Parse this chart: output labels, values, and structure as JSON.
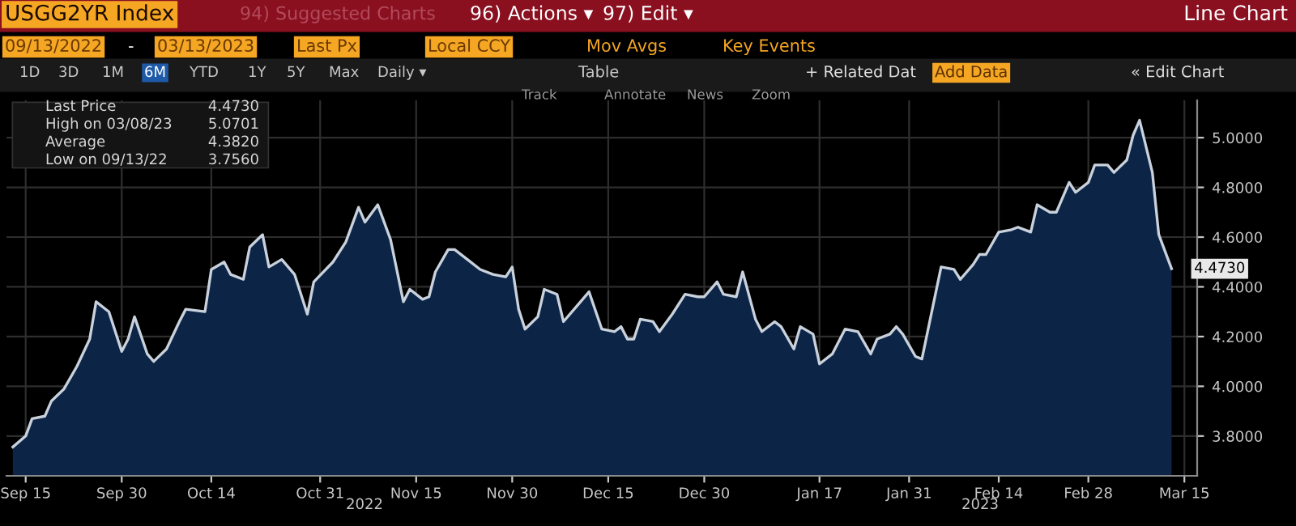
{
  "chart_data": {
    "type": "area",
    "title": "USGG2YR Index",
    "subtitle": "Line Chart",
    "x": [
      "2022-09-13",
      "2022-09-15",
      "2022-09-16",
      "2022-09-18",
      "2022-09-19",
      "2022-09-21",
      "2022-09-23",
      "2022-09-25",
      "2022-09-26",
      "2022-09-28",
      "2022-09-30",
      "2022-10-01",
      "2022-10-02",
      "2022-10-04",
      "2022-10-05",
      "2022-10-07",
      "2022-10-09",
      "2022-10-10",
      "2022-10-13",
      "2022-10-14",
      "2022-10-16",
      "2022-10-17",
      "2022-10-19",
      "2022-10-20",
      "2022-10-22",
      "2022-10-23",
      "2022-10-25",
      "2022-10-27",
      "2022-10-29",
      "2022-10-30",
      "2022-11-02",
      "2022-11-04",
      "2022-11-06",
      "2022-11-07",
      "2022-11-09",
      "2022-11-11",
      "2022-11-13",
      "2022-11-14",
      "2022-11-16",
      "2022-11-17",
      "2022-11-18",
      "2022-11-20",
      "2022-11-21",
      "2022-11-23",
      "2022-11-25",
      "2022-11-27",
      "2022-11-29",
      "2022-11-30",
      "2022-12-01",
      "2022-12-02",
      "2022-12-04",
      "2022-12-05",
      "2022-12-07",
      "2022-12-08",
      "2022-12-10",
      "2022-12-12",
      "2022-12-14",
      "2022-12-16",
      "2022-12-17",
      "2022-12-18",
      "2022-12-19",
      "2022-12-20",
      "2022-12-22",
      "2022-12-23",
      "2022-12-25",
      "2022-12-27",
      "2022-12-29",
      "2022-12-30",
      "2023-01-01",
      "2023-01-02",
      "2023-01-04",
      "2023-01-05",
      "2023-01-07",
      "2023-01-08",
      "2023-01-10",
      "2023-01-11",
      "2023-01-13",
      "2023-01-14",
      "2023-01-16",
      "2023-01-17",
      "2023-01-19",
      "2023-01-21",
      "2023-01-23",
      "2023-01-25",
      "2023-01-26",
      "2023-01-28",
      "2023-01-29",
      "2023-01-30",
      "2023-02-01",
      "2023-02-02",
      "2023-02-05",
      "2023-02-07",
      "2023-02-08",
      "2023-02-10",
      "2023-02-11",
      "2023-02-12",
      "2023-02-14",
      "2023-02-16",
      "2023-02-17",
      "2023-02-19",
      "2023-02-20",
      "2023-02-22",
      "2023-02-23",
      "2023-02-25",
      "2023-02-26",
      "2023-02-28",
      "2023-03-01",
      "2023-03-03",
      "2023-03-04",
      "2023-03-06",
      "2023-03-07",
      "2023-03-08",
      "2023-03-10",
      "2023-03-11",
      "2023-03-13"
    ],
    "series": [
      {
        "color": "#c9d1dc",
        "values": [
          3.756,
          3.8,
          3.87,
          3.88,
          3.94,
          3.99,
          4.08,
          4.19,
          4.34,
          4.3,
          4.14,
          4.19,
          4.28,
          4.13,
          4.1,
          4.15,
          4.26,
          4.31,
          4.3,
          4.47,
          4.5,
          4.45,
          4.43,
          4.56,
          4.61,
          4.48,
          4.51,
          4.45,
          4.29,
          4.42,
          4.5,
          4.58,
          4.72,
          4.66,
          4.73,
          4.59,
          4.34,
          4.39,
          4.35,
          4.36,
          4.46,
          4.55,
          4.55,
          4.51,
          4.47,
          4.45,
          4.44,
          4.48,
          4.31,
          4.23,
          4.28,
          4.39,
          4.37,
          4.26,
          4.32,
          4.38,
          4.23,
          4.22,
          4.24,
          4.19,
          4.19,
          4.27,
          4.26,
          4.22,
          4.29,
          4.37,
          4.36,
          4.36,
          4.42,
          4.37,
          4.36,
          4.46,
          4.27,
          4.22,
          4.26,
          4.24,
          4.15,
          4.24,
          4.21,
          4.09,
          4.13,
          4.23,
          4.22,
          4.13,
          4.19,
          4.21,
          4.24,
          4.21,
          4.12,
          4.11,
          4.48,
          4.47,
          4.43,
          4.49,
          4.53,
          4.53,
          4.62,
          4.63,
          4.64,
          4.62,
          4.73,
          4.7,
          4.7,
          4.82,
          4.78,
          4.82,
          4.89,
          4.89,
          4.86,
          4.91,
          5.01,
          5.07,
          4.86,
          4.61,
          4.473
        ]
      }
    ],
    "xlim": [
      "2022-09-12",
      "2023-03-17"
    ],
    "xticks": [
      {
        "value": "2022-09-15",
        "label": "Sep 15"
      },
      {
        "value": "2022-09-30",
        "label": "Sep 30"
      },
      {
        "value": "2022-10-14",
        "label": "Oct 14"
      },
      {
        "value": "2022-10-31",
        "label": "Oct 31"
      },
      {
        "value": "2022-11-15",
        "label": "Nov 15"
      },
      {
        "value": "2022-11-30",
        "label": "Nov 30"
      },
      {
        "value": "2022-12-15",
        "label": "Dec 15"
      },
      {
        "value": "2022-12-30",
        "label": "Dec 30"
      },
      {
        "value": "2023-01-17",
        "label": "Jan 17"
      },
      {
        "value": "2023-01-31",
        "label": "Jan 31"
      },
      {
        "value": "2023-02-14",
        "label": "Feb 14"
      },
      {
        "value": "2023-02-28",
        "label": "Feb 28"
      },
      {
        "value": "2023-03-15",
        "label": "Mar 15"
      }
    ],
    "ylim": [
      3.64,
      5.15
    ],
    "yticks": [
      {
        "value": 3.8,
        "label": "3.8000"
      },
      {
        "value": 4.0,
        "label": "4.0000"
      },
      {
        "value": 4.2,
        "label": "4.2000"
      },
      {
        "value": 4.4,
        "label": "4.4000"
      },
      {
        "value": 4.6,
        "label": "4.6000"
      },
      {
        "value": 4.8,
        "label": "4.8000"
      },
      {
        "value": 5.0,
        "label": "5.0000"
      }
    ],
    "grid": true,
    "annotations": [
      "94) Suggested Charts",
      "96) Actions ▾",
      "97) Edit ▾",
      "09/13/2022",
      "-",
      "03/13/2023",
      "Last Px",
      "Local CCY",
      "Mov Avgs",
      "Key Events",
      "1D",
      "3D",
      "1M",
      "6M",
      "YTD",
      "1Y",
      "5Y",
      "Max",
      "Daily ▾",
      "Table",
      "+ Related Dat",
      "Add Data",
      "« Edit Chart",
      "Track",
      "Annotate",
      "News",
      "Zoom",
      "Last Price",
      "4.4730",
      "High on 03/08/23",
      "5.0701",
      "Average",
      "4.3820",
      "Low on 09/13/22",
      "3.7560",
      "2022",
      "2023",
      {
        "text": "4.4730",
        "x": "2023-03-13",
        "y": 4.473
      }
    ]
  }
}
